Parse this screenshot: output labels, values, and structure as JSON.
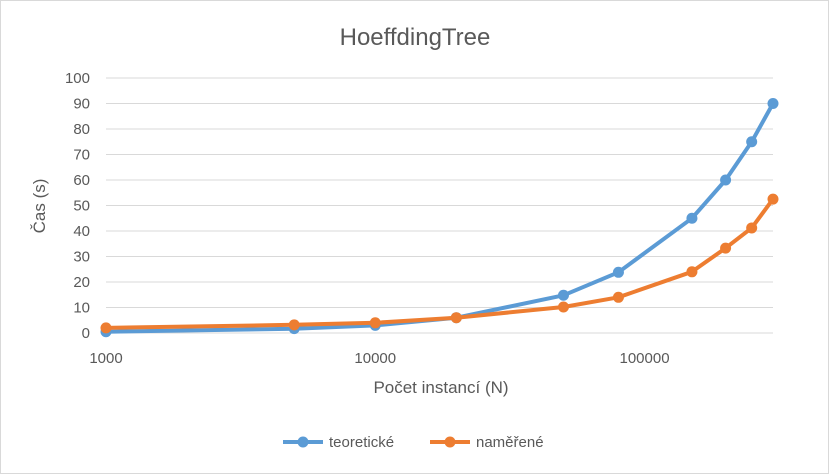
{
  "chart_data": {
    "type": "line",
    "title": "HoeffdingTree",
    "xlabel": "Počet instancí (N)",
    "ylabel": "Čas (s)",
    "x_scale": "log",
    "xlim": [
      1000,
      300000
    ],
    "ylim": [
      0,
      100
    ],
    "x_ticks": [
      "1000",
      "10000",
      "100000"
    ],
    "y_ticks": [
      "0",
      "10",
      "20",
      "30",
      "40",
      "50",
      "60",
      "70",
      "80",
      "90",
      "100"
    ],
    "grid": "horizontal",
    "legend_position": "bottom",
    "series": [
      {
        "name": "teoretické",
        "color": "#5b9bd5",
        "x": [
          1000,
          5000,
          10000,
          20000,
          50000,
          80000,
          150000,
          200000,
          250000,
          300000
        ],
        "y": [
          0.5,
          1.7,
          3.0,
          6.0,
          14.8,
          23.8,
          45.0,
          60.0,
          75.0,
          90.0
        ]
      },
      {
        "name": "naměřené",
        "color": "#ed7d31",
        "x": [
          1000,
          5000,
          10000,
          20000,
          50000,
          80000,
          150000,
          200000,
          250000,
          300000
        ],
        "y": [
          2.0,
          3.2,
          4.0,
          6.0,
          10.2,
          14.0,
          24.0,
          33.3,
          41.2,
          52.5
        ]
      }
    ]
  }
}
